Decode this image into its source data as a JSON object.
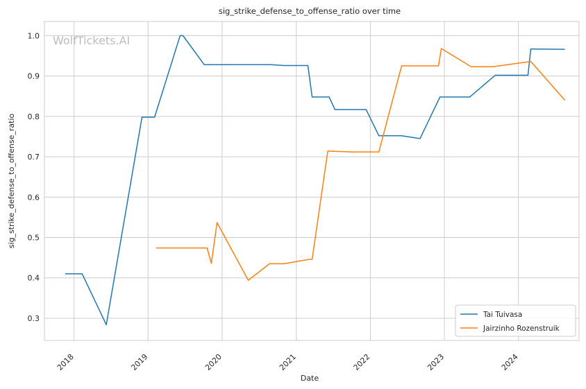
{
  "chart_data": {
    "type": "line",
    "title": "sig_strike_defense_to_offense_ratio over time",
    "xlabel": "Date",
    "ylabel": "sig_strike_defense_to_offense_ratio",
    "watermark": "WolfTickets.AI",
    "x_ticks": [
      "2018",
      "2019",
      "2020",
      "2021",
      "2022",
      "2023",
      "2024"
    ],
    "y_ticks": [
      "0.3",
      "0.4",
      "0.5",
      "0.6",
      "0.7",
      "0.8",
      "0.9",
      "1.0"
    ],
    "xlim": [
      "2017-08-08",
      "2024-10-26"
    ],
    "ylim": [
      0.245,
      1.035
    ],
    "grid": true,
    "legend_position": "lower-right",
    "series": [
      {
        "name": "Tai Tuivasa",
        "color": "#1f77b4",
        "points": [
          [
            "2017-11-19",
            0.41
          ],
          [
            "2018-02-10",
            0.41
          ],
          [
            "2018-06-09",
            0.284
          ],
          [
            "2018-12-02",
            0.798
          ],
          [
            "2019-02-02",
            0.798
          ],
          [
            "2019-06-08",
            1.0
          ],
          [
            "2019-06-22",
            1.0
          ],
          [
            "2019-10-05",
            0.928
          ],
          [
            "2020-08-29",
            0.928
          ],
          [
            "2020-11-01",
            0.926
          ],
          [
            "2021-02-27",
            0.926
          ],
          [
            "2021-03-20",
            0.848
          ],
          [
            "2021-06-12",
            0.848
          ],
          [
            "2021-07-10",
            0.817
          ],
          [
            "2021-12-11",
            0.817
          ],
          [
            "2022-02-12",
            0.752
          ],
          [
            "2022-06-04",
            0.752
          ],
          [
            "2022-09-03",
            0.745
          ],
          [
            "2022-12-10",
            0.848
          ],
          [
            "2023-05-06",
            0.848
          ],
          [
            "2023-09-09",
            0.902
          ],
          [
            "2024-02-17",
            0.902
          ],
          [
            "2024-03-02",
            0.967
          ],
          [
            "2024-08-17",
            0.966
          ]
        ]
      },
      {
        "name": "Jairzinho Rozenstruik",
        "color": "#ff7f0e",
        "points": [
          [
            "2019-02-09",
            0.474
          ],
          [
            "2019-10-19",
            0.474
          ],
          [
            "2019-11-09",
            0.436
          ],
          [
            "2019-12-07",
            0.537
          ],
          [
            "2020-05-09",
            0.394
          ],
          [
            "2020-08-22",
            0.435
          ],
          [
            "2020-10-31",
            0.435
          ],
          [
            "2021-03-06",
            0.446
          ],
          [
            "2021-03-20",
            0.446
          ],
          [
            "2021-06-05",
            0.714
          ],
          [
            "2021-10-02",
            0.712
          ],
          [
            "2022-02-12",
            0.712
          ],
          [
            "2022-06-04",
            0.925
          ],
          [
            "2022-12-03",
            0.925
          ],
          [
            "2022-12-17",
            0.968
          ],
          [
            "2023-05-13",
            0.923
          ],
          [
            "2023-08-26",
            0.923
          ],
          [
            "2024-03-02",
            0.936
          ],
          [
            "2024-08-17",
            0.84
          ]
        ]
      }
    ]
  }
}
